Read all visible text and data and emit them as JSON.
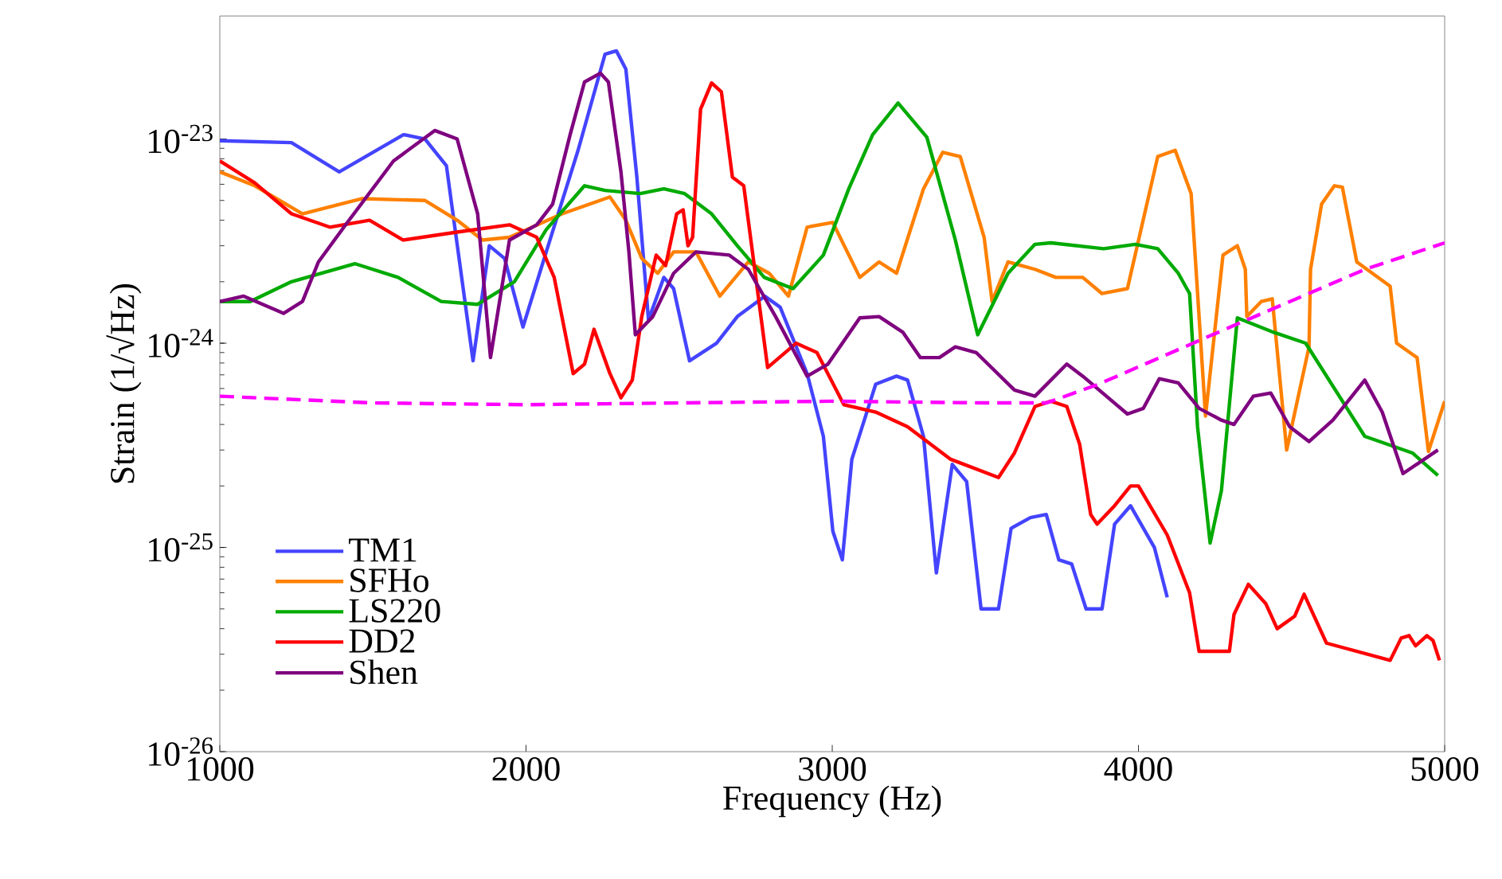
{
  "chart_data": {
    "type": "line",
    "xlabel": "Frequency (Hz)",
    "ylabel": "Strain  (1/√Hz)",
    "log": "y",
    "xlim": [
      1000,
      5000
    ],
    "ylim": [
      1e-26,
      4e-23
    ],
    "xticks": [
      1000,
      2000,
      3000,
      4000,
      5000
    ],
    "yticks": [
      {
        "value": 1e-26,
        "label": "10$^{-26}$"
      },
      {
        "value": 1e-25,
        "label": "10$^{-25}$"
      },
      {
        "value": 1e-24,
        "label": "10$^{-24}$"
      },
      {
        "value": 1e-23,
        "label": "10$^{-23}$"
      }
    ],
    "legend": "bottom left",
    "marker": "none",
    "line_style": "solid",
    "series": [
      {
        "name": "TM1",
        "color": "#4444ff",
        "x": [
          1000,
          1234,
          1390,
          1600,
          1670,
          1740,
          1827,
          1880,
          1930,
          1990,
          2066,
          2170,
          2258,
          2295,
          2326,
          2362,
          2400,
          2450,
          2482,
          2534,
          2622,
          2690,
          2780,
          2830,
          2918,
          2971,
          3002,
          3033,
          3064,
          3142,
          3210,
          3246,
          3298,
          3340,
          3392,
          3439,
          3486,
          3543,
          3584,
          3647,
          3699,
          3740,
          3782,
          3829,
          3881,
          3922,
          3974,
          4052,
          4094
        ],
        "values": [
          9.8e-24,
          9.6e-24,
          6.9e-24,
          1.05e-23,
          1e-23,
          7.4e-24,
          8.2e-25,
          3e-24,
          2.6e-24,
          1.2e-24,
          2.8e-24,
          8.8e-24,
          2.6e-23,
          2.7e-23,
          2.2e-23,
          6.5e-24,
          1.3e-24,
          2.1e-24,
          1.85e-24,
          8.2e-25,
          1e-24,
          1.35e-24,
          1.7e-24,
          1.5e-24,
          7.1e-25,
          3.5e-25,
          1.2e-25,
          8.7e-26,
          2.7e-25,
          6.3e-25,
          6.9e-25,
          6.6e-25,
          3.5e-25,
          7.5e-26,
          2.55e-25,
          2.1e-25,
          5e-26,
          5e-26,
          1.24e-25,
          1.4e-25,
          1.45e-25,
          8.7e-26,
          8.3e-26,
          5e-26,
          5e-26,
          1.3e-25,
          1.6e-25,
          1e-25,
          5.7e-26
        ]
      },
      {
        "name": "SFHo",
        "color": "#ff8000",
        "x": [
          1000,
          1114,
          1270,
          1463,
          1670,
          1775,
          1858,
          1946,
          2118,
          2274,
          2326,
          2378,
          2430,
          2482,
          2555,
          2633,
          2726,
          2794,
          2857,
          2918,
          3002,
          3090,
          3153,
          3210,
          3298,
          3361,
          3418,
          3496,
          3522,
          3574,
          3662,
          3730,
          3818,
          3881,
          3964,
          4063,
          4120,
          4172,
          4219,
          4276,
          4323,
          4349,
          4354,
          4401,
          4437,
          4484,
          4557,
          4562,
          4598,
          4640,
          4666,
          4713,
          4822,
          4843,
          4910,
          4947,
          5000
        ],
        "values": [
          6.9e-24,
          5.9e-24,
          4.3e-24,
          5.1e-24,
          5e-24,
          4e-24,
          3.2e-24,
          3.3e-24,
          4.3e-24,
          5.2e-24,
          4e-24,
          2.6e-24,
          2.2e-24,
          2.8e-24,
          2.8e-24,
          1.7e-24,
          2.5e-24,
          2.2e-24,
          1.7e-24,
          3.7e-24,
          3.9e-24,
          2.1e-24,
          2.5e-24,
          2.2e-24,
          5.7e-24,
          8.6e-24,
          8.2e-24,
          3.3e-24,
          1.6e-24,
          2.5e-24,
          2.3e-24,
          2.1e-24,
          2.1e-24,
          1.75e-24,
          1.85e-24,
          8.2e-24,
          8.8e-24,
          5.4e-24,
          4.4e-25,
          2.7e-24,
          3e-24,
          2.3e-24,
          1.35e-24,
          1.6e-24,
          1.65e-24,
          3e-25,
          9.6e-25,
          2.3e-24,
          4.8e-24,
          5.9e-24,
          5.8e-24,
          2.5e-24,
          1.9e-24,
          1e-24,
          8.5e-25,
          2.95e-25,
          5.2e-25
        ]
      },
      {
        "name": "LS220",
        "color": "#00aa00",
        "x": [
          1000,
          1099,
          1234,
          1442,
          1582,
          1723,
          1842,
          1962,
          2066,
          2191,
          2258,
          2373,
          2450,
          2518,
          2606,
          2690,
          2778,
          2872,
          2971,
          3054,
          3132,
          3215,
          3309,
          3402,
          3475,
          3574,
          3662,
          3714,
          3886,
          3990,
          4063,
          4130,
          4167,
          4193,
          4234,
          4271,
          4323,
          4442,
          4546,
          4739,
          4895,
          4978
        ],
        "values": [
          1.6e-24,
          1.6e-24,
          2e-24,
          2.45e-24,
          2.1e-24,
          1.6e-24,
          1.55e-24,
          2e-24,
          3.6e-24,
          5.9e-24,
          5.6e-24,
          5.4e-24,
          5.7e-24,
          5.4e-24,
          4.3e-24,
          3e-24,
          2.1e-24,
          1.85e-24,
          2.7e-24,
          5.7e-24,
          1.05e-23,
          1.5e-23,
          1.02e-23,
          3.2e-24,
          1.1e-24,
          2.2e-24,
          3.05e-24,
          3.1e-24,
          2.9e-24,
          3.05e-24,
          2.9e-24,
          2.2e-24,
          1.75e-24,
          3.9e-25,
          1.05e-25,
          1.9e-25,
          1.33e-24,
          1.13e-24,
          1e-24,
          3.5e-25,
          2.9e-25,
          2.25e-25
        ]
      },
      {
        "name": "DD2",
        "color": "#ff0000",
        "x": [
          1000,
          1114,
          1234,
          1359,
          1489,
          1598,
          1775,
          1946,
          2035,
          2092,
          2154,
          2191,
          2222,
          2274,
          2310,
          2347,
          2378,
          2425,
          2456,
          2492,
          2513,
          2529,
          2544,
          2570,
          2606,
          2638,
          2674,
          2711,
          2789,
          2882,
          2950,
          3038,
          3142,
          3246,
          3387,
          3543,
          3595,
          3662,
          3714,
          3766,
          3808,
          3844,
          3865,
          3922,
          3974,
          4000,
          4094,
          4167,
          4198,
          4297,
          4312,
          4359,
          4416,
          4453,
          4510,
          4541,
          4614,
          4822,
          4858,
          4884,
          4905,
          4942,
          4962,
          4983
        ],
        "values": [
          7.8e-24,
          6.1e-24,
          4.3e-24,
          3.7e-24,
          4e-24,
          3.2e-24,
          3.5e-24,
          3.8e-24,
          3.3e-24,
          2.1e-24,
          7.1e-25,
          7.9e-25,
          1.17e-24,
          7.1e-25,
          5.4e-25,
          6.6e-25,
          1.35e-24,
          2.7e-24,
          2.4e-24,
          4.3e-24,
          4.5e-24,
          3e-24,
          3.3e-24,
          1.4e-23,
          1.88e-23,
          1.7e-23,
          6.5e-24,
          5.9e-24,
          7.6e-25,
          1e-24,
          9e-25,
          5e-25,
          4.6e-25,
          3.9e-25,
          2.7e-25,
          2.2e-25,
          2.9e-25,
          4.9e-25,
          5.2e-25,
          4.9e-25,
          3.2e-25,
          1.45e-25,
          1.3e-25,
          1.6e-25,
          2e-25,
          2e-25,
          1.15e-25,
          6e-26,
          3.1e-26,
          3.1e-26,
          4.7e-26,
          6.6e-26,
          5.3e-26,
          4e-26,
          4.6e-26,
          5.9e-26,
          3.4e-26,
          2.8e-26,
          3.6e-26,
          3.7e-26,
          3.3e-26,
          3.7e-26,
          3.5e-26,
          2.8e-26
        ]
      },
      {
        "name": "Shen",
        "color": "#7f007f",
        "x": [
          1000,
          1078,
          1208,
          1270,
          1322,
          1411,
          1567,
          1702,
          1775,
          1842,
          1884,
          1946,
          2035,
          2087,
          2144,
          2191,
          2243,
          2269,
          2310,
          2336,
          2357,
          2414,
          2482,
          2555,
          2664,
          2726,
          2815,
          2918,
          2986,
          3090,
          3153,
          3231,
          3288,
          3350,
          3402,
          3470,
          3595,
          3662,
          3766,
          3818,
          3964,
          4016,
          4068,
          4130,
          4198,
          4271,
          4312,
          4375,
          4432,
          4494,
          4557,
          4635,
          4739,
          4796,
          4864,
          4978
        ],
        "values": [
          1.6e-24,
          1.7e-24,
          1.4e-24,
          1.6e-24,
          2.5e-24,
          3.8e-24,
          7.8e-24,
          1.1e-23,
          1e-23,
          4.3e-24,
          8.5e-25,
          3.2e-24,
          3.8e-24,
          4.8e-24,
          1.05e-23,
          1.9e-23,
          2.1e-23,
          1.9e-23,
          6.9e-24,
          2.8e-24,
          1.1e-24,
          1.35e-24,
          2.2e-24,
          2.8e-24,
          2.7e-24,
          2.3e-24,
          1.35e-24,
          6.9e-25,
          7.9e-25,
          1.33e-24,
          1.35e-24,
          1.13e-24,
          8.5e-25,
          8.5e-25,
          9.6e-25,
          9e-25,
          5.9e-25,
          5.5e-25,
          7.9e-25,
          6.9e-25,
          4.5e-25,
          4.8e-25,
          6.7e-25,
          6.4e-25,
          4.8e-25,
          4.2e-25,
          4e-25,
          5.5e-25,
          5.7e-25,
          3.9e-25,
          3.3e-25,
          4.2e-25,
          6.6e-25,
          4.6e-25,
          2.3e-25,
          3e-25
        ]
      },
      {
        "color": "#ff00ff",
        "line_style": "dashed",
        "x": [
          1000,
          1500,
          2000,
          2500,
          3000,
          3500,
          3700,
          3870,
          4300,
          4740,
          5000
        ],
        "values": [
          5.5e-25,
          5.1e-25,
          5e-25,
          5.1e-25,
          5.2e-25,
          5.1e-25,
          5.1e-25,
          6.3e-25,
          1.2e-24,
          2.3e-24,
          3.1e-24
        ]
      }
    ]
  }
}
